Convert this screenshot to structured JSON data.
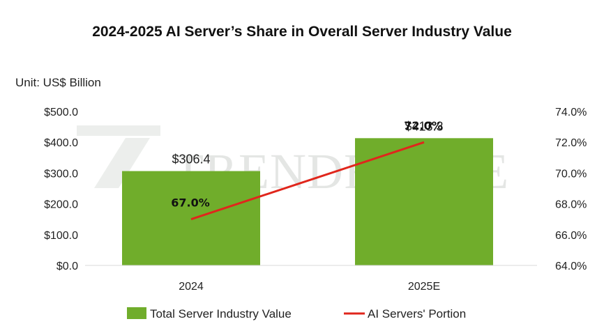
{
  "chart_data": {
    "type": "bar",
    "title": "2024-2025 AI Server’s Share in Overall Server Industry Value",
    "unit_label": "Unit: US$ Billion",
    "categories": [
      "2024",
      "2025E"
    ],
    "series": [
      {
        "name": "Total Server Industry Value",
        "type": "bar",
        "axis": "left",
        "values": [
          306.4,
          413.3
        ],
        "labels": [
          "$306.4",
          "$413.3"
        ],
        "color": "#70ad2b"
      },
      {
        "name": "AI Servers' Portion",
        "type": "line",
        "axis": "right",
        "values": [
          67.0,
          72.0
        ],
        "labels": [
          "67.0%",
          "72.0%"
        ],
        "color": "#e0261c"
      }
    ],
    "left_axis": {
      "ylim": [
        0,
        500
      ],
      "ticks": [
        0,
        100,
        200,
        300,
        400,
        500
      ],
      "tick_labels": [
        "$0.0",
        "$100.0",
        "$200.0",
        "$300.0",
        "$400.0",
        "$500.0"
      ]
    },
    "right_axis": {
      "ylim": [
        64,
        74
      ],
      "ticks": [
        64,
        66,
        68,
        70,
        72,
        74
      ],
      "tick_labels": [
        "64.0%",
        "66.0%",
        "68.0%",
        "70.0%",
        "72.0%",
        "74.0%"
      ]
    },
    "grid": false,
    "legend_position": "bottom",
    "watermark": "TRENDFORCE"
  }
}
